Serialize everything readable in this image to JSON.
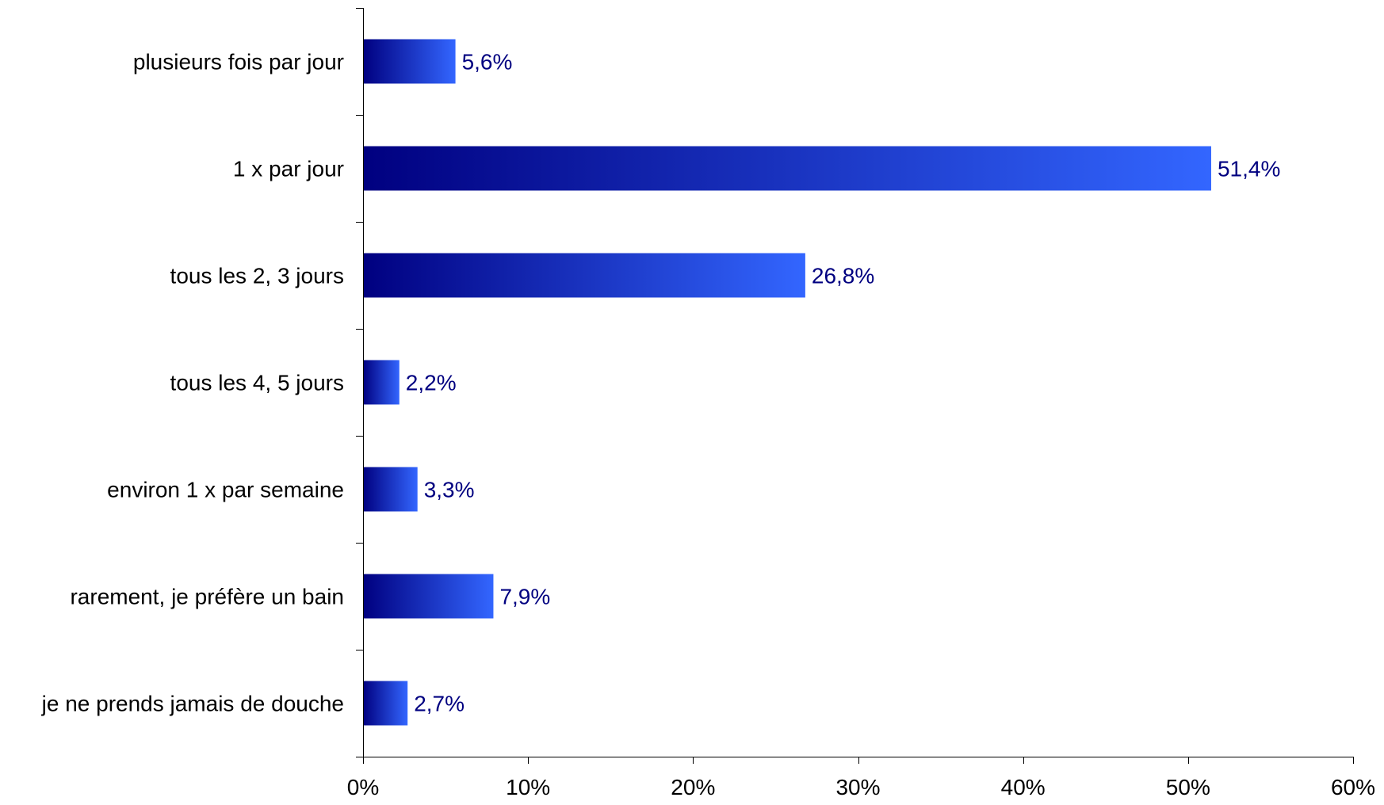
{
  "chart_data": {
    "type": "bar",
    "orientation": "horizontal",
    "categories": [
      "plusieurs fois par jour",
      "1 x par jour",
      "tous les 2, 3 jours",
      "tous les 4, 5 jours",
      "environ 1 x par semaine",
      "rarement, je préfère un bain",
      "je ne prends jamais de douche"
    ],
    "values": [
      5.6,
      51.4,
      26.8,
      2.2,
      3.3,
      7.9,
      2.7
    ],
    "data_labels": [
      "5,6%",
      "51,4%",
      "26,8%",
      "2,2%",
      "3,3%",
      "7,9%",
      "2,7%"
    ],
    "title": "",
    "xlabel": "",
    "ylabel": "",
    "xlim": [
      0,
      60
    ],
    "x_ticks": [
      0,
      10,
      20,
      30,
      40,
      50,
      60
    ],
    "x_tick_labels": [
      "0%",
      "10%",
      "20%",
      "30%",
      "40%",
      "50%",
      "60%"
    ],
    "grid": false,
    "legend": "none",
    "colors": {
      "bar_gradient_start": "#000080",
      "bar_gradient_end": "#3366FF",
      "data_label": "#000080",
      "axis": "#000000"
    }
  }
}
